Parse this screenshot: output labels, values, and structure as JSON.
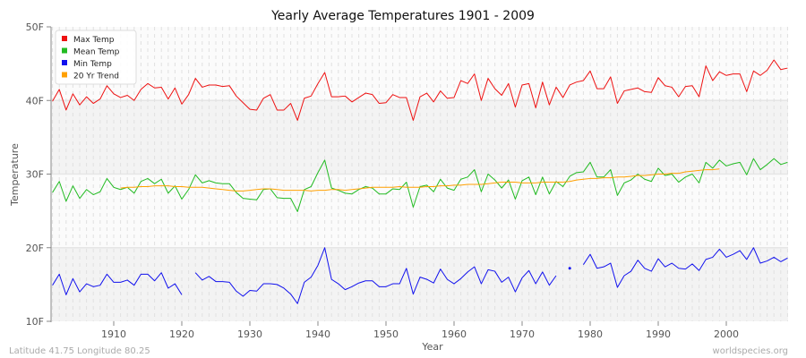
{
  "chart_data": {
    "type": "line",
    "title": "Yearly Average Temperatures 1901 - 2009",
    "xlabel": "Year",
    "ylabel": "Temperature",
    "xlim": [
      1901,
      2009
    ],
    "ylim": [
      10,
      50
    ],
    "yticks": [
      {
        "v": 10,
        "label": "10F"
      },
      {
        "v": 20,
        "label": "20F"
      },
      {
        "v": 30,
        "label": "30F"
      },
      {
        "v": 40,
        "label": "40F"
      },
      {
        "v": 50,
        "label": "50F"
      }
    ],
    "xticks": [
      1910,
      1920,
      1930,
      1940,
      1950,
      1960,
      1970,
      1980,
      1990,
      2000
    ],
    "grid": true,
    "legend_position": "top-left",
    "x_start": 1901,
    "series": [
      {
        "name": "Max Temp",
        "color": "#ee1111",
        "values": [
          39.9,
          41.5,
          38.7,
          40.9,
          39.4,
          40.5,
          39.6,
          40.2,
          42.0,
          40.9,
          40.4,
          40.7,
          40.0,
          41.5,
          42.3,
          41.7,
          41.8,
          40.2,
          41.7,
          39.5,
          40.8,
          43.0,
          41.8,
          42.1,
          42.1,
          41.9,
          42.0,
          40.6,
          39.7,
          38.8,
          38.7,
          40.3,
          40.8,
          38.7,
          38.7,
          39.6,
          37.3,
          40.3,
          40.6,
          42.3,
          43.8,
          40.5,
          40.5,
          40.6,
          39.8,
          40.4,
          41.0,
          40.8,
          39.6,
          39.7,
          40.8,
          40.4,
          40.4,
          37.3,
          40.5,
          41.0,
          39.8,
          41.3,
          40.3,
          40.4,
          42.7,
          42.3,
          43.6,
          40.0,
          43.0,
          41.6,
          40.7,
          42.3,
          39.1,
          42.1,
          42.3,
          39.0,
          42.5,
          39.4,
          41.8,
          40.4,
          42.1,
          42.5,
          42.7,
          44.0,
          41.6,
          41.6,
          43.2,
          39.6,
          41.3,
          41.5,
          41.7,
          41.2,
          41.1,
          43.1,
          42.0,
          41.8,
          40.5,
          41.9,
          42.0,
          40.5,
          44.7,
          42.7,
          43.9,
          43.4,
          43.6,
          43.6,
          41.2,
          44.0,
          43.4,
          44.1,
          45.5,
          44.2,
          44.4
        ]
      },
      {
        "name": "Mean Temp",
        "color": "#22bb22",
        "values": [
          27.5,
          29.0,
          26.3,
          28.4,
          26.7,
          27.9,
          27.2,
          27.6,
          29.4,
          28.2,
          27.9,
          28.2,
          27.4,
          29.0,
          29.4,
          28.7,
          29.3,
          27.4,
          28.4,
          26.6,
          27.9,
          29.9,
          28.8,
          29.1,
          28.8,
          28.7,
          28.7,
          27.5,
          26.7,
          26.6,
          26.5,
          27.9,
          28.0,
          26.8,
          26.7,
          26.7,
          24.9,
          27.9,
          28.3,
          30.2,
          31.9,
          28.1,
          27.8,
          27.4,
          27.3,
          27.9,
          28.3,
          28.1,
          27.3,
          27.3,
          28.0,
          27.9,
          28.9,
          25.5,
          28.3,
          28.5,
          27.6,
          29.3,
          28.1,
          27.8,
          29.3,
          29.6,
          30.6,
          27.6,
          30.0,
          29.2,
          28.1,
          29.2,
          26.6,
          29.1,
          29.6,
          27.2,
          29.6,
          27.3,
          29.0,
          28.3,
          29.7,
          30.2,
          30.3,
          31.6,
          29.6,
          29.6,
          30.6,
          27.1,
          28.8,
          29.2,
          30.0,
          29.3,
          29.0,
          30.8,
          29.8,
          30.0,
          28.9,
          29.6,
          30.0,
          28.8,
          31.6,
          30.8,
          31.9,
          31.1,
          31.4,
          31.6,
          29.9,
          32.1,
          30.6,
          31.3,
          32.1,
          31.3,
          31.6
        ]
      },
      {
        "name": "Min Temp",
        "color": "#1111ee",
        "values": [
          14.9,
          16.4,
          13.6,
          15.8,
          14.0,
          15.1,
          14.7,
          14.9,
          16.4,
          15.3,
          15.3,
          15.6,
          14.9,
          16.4,
          16.4,
          15.5,
          16.6,
          14.5,
          15.1,
          13.6,
          null,
          16.6,
          15.6,
          16.1,
          15.4,
          15.4,
          15.3,
          14.1,
          13.4,
          14.2,
          14.1,
          15.1,
          15.1,
          15.0,
          14.5,
          13.7,
          12.4,
          15.3,
          16.0,
          17.6,
          20.0,
          15.7,
          15.1,
          14.3,
          14.7,
          15.2,
          15.5,
          15.5,
          14.7,
          14.7,
          15.1,
          15.1,
          17.2,
          13.7,
          16.0,
          15.7,
          15.2,
          17.1,
          15.7,
          15.1,
          15.8,
          16.7,
          17.4,
          15.1,
          17.0,
          16.8,
          15.3,
          16.0,
          14.0,
          15.9,
          16.9,
          15.1,
          16.7,
          14.9,
          16.2,
          null,
          17.2,
          null,
          17.7,
          19.1,
          17.2,
          17.4,
          17.9,
          14.6,
          16.2,
          16.8,
          18.3,
          17.2,
          16.8,
          18.5,
          17.4,
          17.9,
          17.2,
          17.1,
          17.8,
          16.9,
          18.4,
          18.7,
          19.8,
          18.7,
          19.1,
          19.6,
          18.4,
          20.0,
          17.9,
          18.2,
          18.7,
          18.1,
          18.6
        ]
      },
      {
        "name": "20 Yr Trend",
        "color": "#ffa000",
        "x_start": 1911,
        "values": [
          28.1,
          28.2,
          28.2,
          28.3,
          28.3,
          28.4,
          28.4,
          28.4,
          28.3,
          28.3,
          28.2,
          28.2,
          28.2,
          28.1,
          28.0,
          27.9,
          27.8,
          27.7,
          27.7,
          27.8,
          27.9,
          28.0,
          28.0,
          27.9,
          27.8,
          27.8,
          27.8,
          27.8,
          27.7,
          27.8,
          27.8,
          27.9,
          27.9,
          27.8,
          27.9,
          28.0,
          28.1,
          28.2,
          28.2,
          28.2,
          28.2,
          28.3,
          28.2,
          28.2,
          28.2,
          28.3,
          28.3,
          28.4,
          28.4,
          28.5,
          28.5,
          28.6,
          28.6,
          28.6,
          28.7,
          28.8,
          28.9,
          28.9,
          28.9,
          28.8,
          28.8,
          28.8,
          28.9,
          28.9,
          28.9,
          28.9,
          29.0,
          29.2,
          29.3,
          29.4,
          29.4,
          29.5,
          29.5,
          29.6,
          29.6,
          29.7,
          29.8,
          29.8,
          29.9,
          30.0,
          30.0,
          30.1,
          30.1,
          30.3,
          30.4,
          30.5,
          30.6,
          30.6,
          30.7
        ]
      }
    ]
  },
  "footer": {
    "location": "Latitude 41.75 Longitude 80.25",
    "site": "worldspecies.org"
  }
}
